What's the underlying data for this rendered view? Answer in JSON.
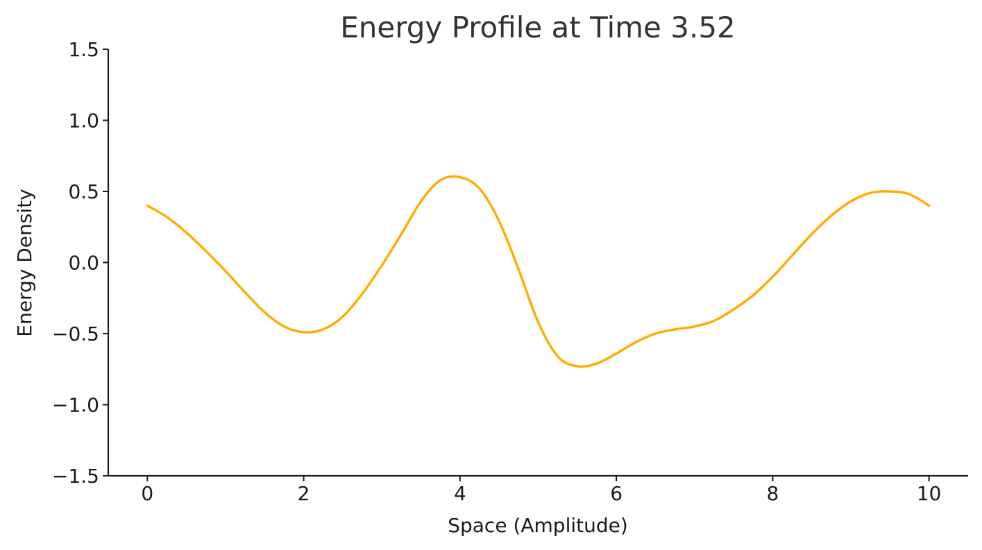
{
  "chart_data": {
    "type": "line",
    "title": "Energy Profile at Time 3.52",
    "xlabel": "Space (Amplitude)",
    "ylabel": "Energy Density",
    "xlim": [
      -0.5,
      10.5
    ],
    "ylim": [
      -1.5,
      1.5
    ],
    "x_ticks": [
      0,
      2,
      4,
      6,
      8,
      10
    ],
    "x_tick_labels": [
      "0",
      "2",
      "4",
      "6",
      "8",
      "10"
    ],
    "y_ticks": [
      -1.5,
      -1.0,
      -0.5,
      0.0,
      0.5,
      1.0,
      1.5
    ],
    "y_tick_labels": [
      "−1.5",
      "−1.0",
      "−0.5",
      "0.0",
      "0.5",
      "1.0",
      "1.5"
    ],
    "grid": false,
    "line_color": "#FFAE00",
    "axis_color": "#1a1a1a",
    "series": [
      {
        "x": [
          0,
          0.25,
          0.5,
          0.75,
          1.0,
          1.25,
          1.5,
          1.75,
          2.0,
          2.25,
          2.5,
          2.75,
          3.0,
          3.25,
          3.5,
          3.75,
          4.0,
          4.25,
          4.5,
          4.75,
          5.0,
          5.25,
          5.5,
          5.75,
          6.0,
          6.25,
          6.5,
          6.75,
          7.0,
          7.25,
          7.5,
          7.75,
          8.0,
          8.25,
          8.5,
          8.75,
          9.0,
          9.25,
          9.5,
          9.75,
          10.0
        ],
        "y": [
          0.4,
          0.32,
          0.21,
          0.08,
          -0.06,
          -0.21,
          -0.35,
          -0.45,
          -0.49,
          -0.47,
          -0.38,
          -0.22,
          -0.02,
          0.2,
          0.43,
          0.58,
          0.6,
          0.52,
          0.29,
          -0.05,
          -0.42,
          -0.66,
          -0.73,
          -0.71,
          -0.64,
          -0.56,
          -0.5,
          -0.47,
          -0.45,
          -0.41,
          -0.33,
          -0.23,
          -0.1,
          0.05,
          0.2,
          0.33,
          0.43,
          0.49,
          0.5,
          0.48,
          0.4
        ]
      }
    ]
  }
}
